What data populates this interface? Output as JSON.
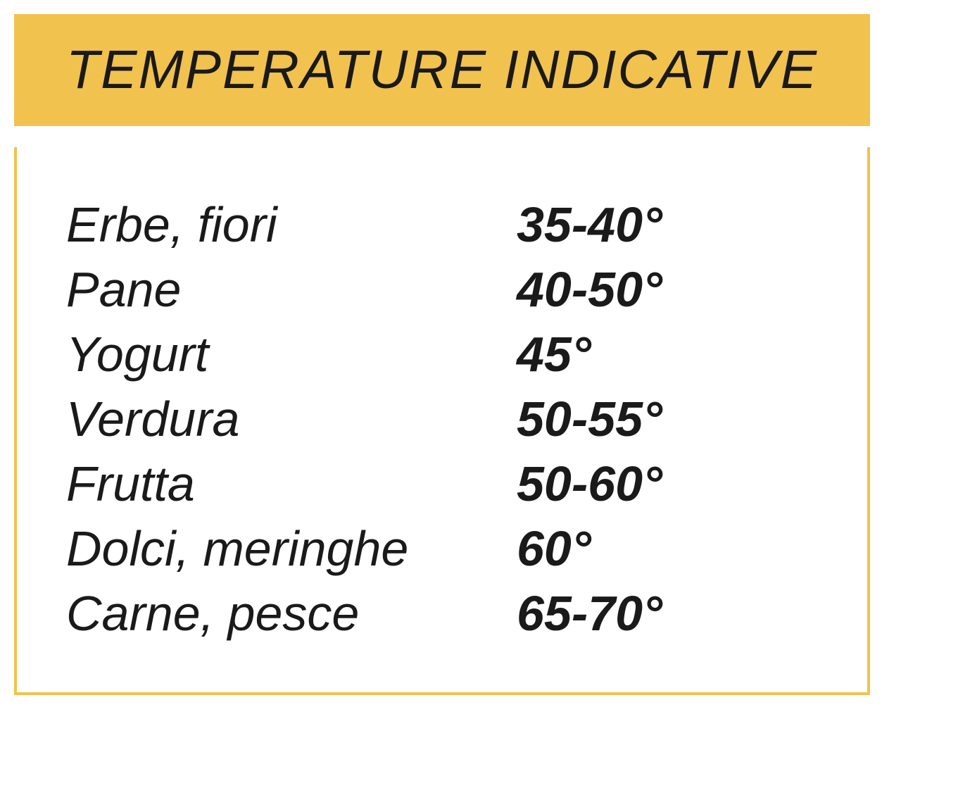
{
  "header": {
    "title": "TEMPERATURE INDICATIVE"
  },
  "rows": [
    {
      "label": "Erbe, fiori",
      "value": "35-40°"
    },
    {
      "label": "Pane",
      "value": "40-50°"
    },
    {
      "label": "Yogurt",
      "value": "45°"
    },
    {
      "label": "Verdura",
      "value": "50-55°"
    },
    {
      "label": "Frutta",
      "value": "50-60°"
    },
    {
      "label": "Dolci, meringhe",
      "value": "60°"
    },
    {
      "label": "Carne, pesce",
      "value": "65-70°"
    }
  ],
  "colors": {
    "header_bg": "#f1c24e",
    "border": "#f1c24e",
    "text": "#1a1a1a",
    "content_bg": "#ffffff"
  },
  "typography": {
    "title_fontsize": 77,
    "label_fontsize": 70,
    "value_fontsize": 70,
    "font_family": "Arial",
    "style": "italic"
  }
}
